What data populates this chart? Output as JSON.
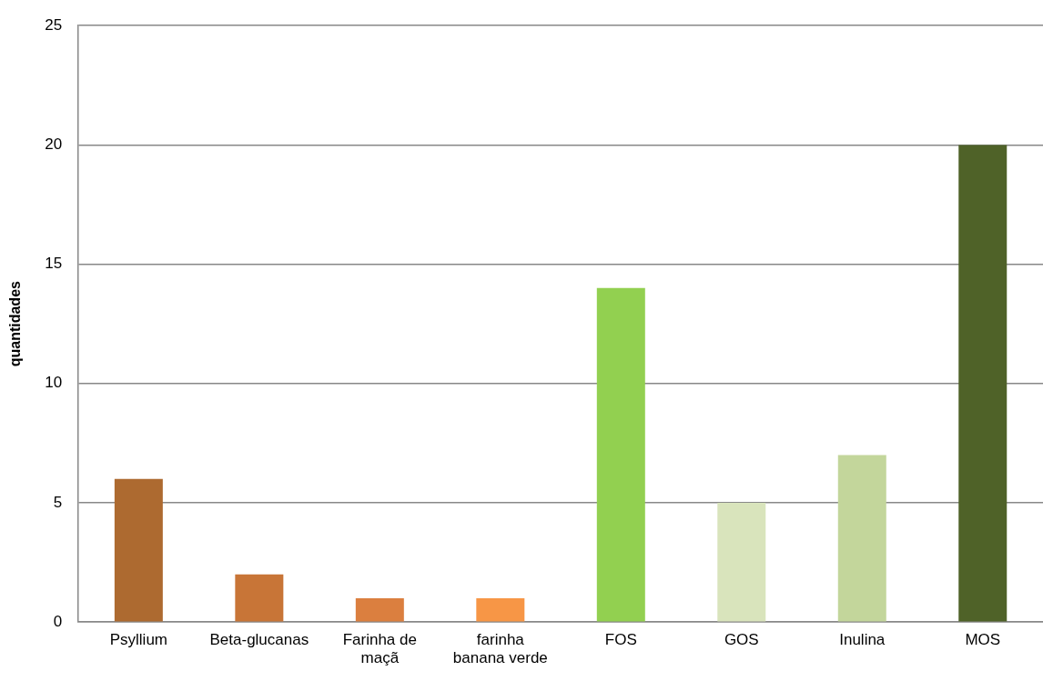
{
  "chart_data": {
    "type": "bar",
    "ylabel": "quantidades",
    "categories": [
      "Psyllium",
      "Beta-glucanas",
      "Farinha de maçã",
      "farinha banana verde",
      "FOS",
      "GOS",
      "Inulina",
      "MOS"
    ],
    "values": [
      6,
      2,
      1,
      1,
      14,
      5,
      7,
      20
    ],
    "colors": [
      "#ad6a30",
      "#c87537",
      "#db7f3f",
      "#f79646",
      "#92d050",
      "#d9e4bc",
      "#c3d69b",
      "#4f6228"
    ],
    "ylim": [
      0,
      25
    ],
    "yticks": [
      0,
      5,
      10,
      15,
      20,
      25
    ],
    "grid": "y",
    "legend": false
  }
}
